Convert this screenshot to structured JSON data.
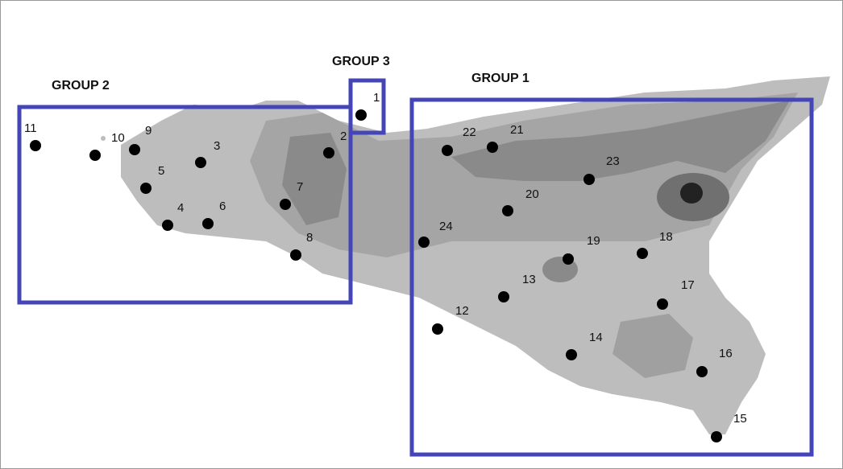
{
  "groups": [
    {
      "label": "GROUP 2"
    },
    {
      "label": "GROUP 3"
    },
    {
      "label": "GROUP 1"
    }
  ],
  "stations": [
    {
      "label": "1"
    },
    {
      "label": "2"
    },
    {
      "label": "3"
    },
    {
      "label": "4"
    },
    {
      "label": "5"
    },
    {
      "label": "6"
    },
    {
      "label": "7"
    },
    {
      "label": "8"
    },
    {
      "label": "9"
    },
    {
      "label": "10"
    },
    {
      "label": "11"
    },
    {
      "label": "12"
    },
    {
      "label": "13"
    },
    {
      "label": "14"
    },
    {
      "label": "15"
    },
    {
      "label": "16"
    },
    {
      "label": "17"
    },
    {
      "label": "18"
    },
    {
      "label": "19"
    },
    {
      "label": "20"
    },
    {
      "label": "21"
    },
    {
      "label": "22"
    },
    {
      "label": "23"
    },
    {
      "label": "24"
    }
  ]
}
